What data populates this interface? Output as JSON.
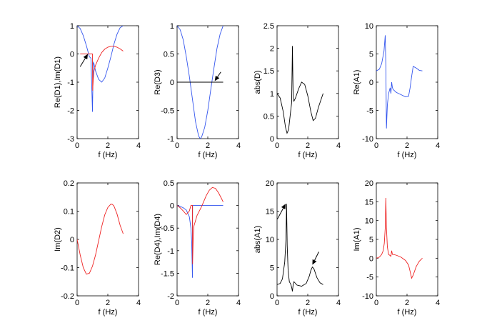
{
  "chart_data": [
    {
      "type": "line",
      "xlabel": "f (Hz)",
      "ylabel": "Re(D1),Im(D1)",
      "xlim": [
        0,
        4
      ],
      "ylim": [
        -3,
        1
      ],
      "xticks": [
        0,
        2,
        4
      ],
      "yticks": [
        -3,
        -2,
        -1,
        0,
        1
      ],
      "series": [
        {
          "name": "Re(D1)",
          "color": "#3355ee",
          "x": [
            0.0,
            0.2,
            0.4,
            0.6,
            0.8,
            0.9,
            1.0,
            1.05,
            1.1,
            1.2,
            1.4,
            1.6,
            1.8,
            2.0,
            2.2,
            2.4,
            2.6,
            2.8,
            3.0
          ],
          "y": [
            1.0,
            0.9,
            0.65,
            0.3,
            -0.1,
            -0.15,
            -2.05,
            -0.3,
            -0.35,
            -0.6,
            -0.9,
            -1.0,
            -0.85,
            -0.5,
            -0.1,
            0.35,
            0.7,
            0.93,
            1.0
          ]
        },
        {
          "name": "Im(D1)",
          "color": "#ee2222",
          "x": [
            0.2,
            0.5,
            0.7,
            0.9,
            1.0,
            1.01,
            1.05,
            1.1,
            1.2,
            1.4,
            1.6,
            1.8,
            2.0,
            2.2,
            2.4,
            2.6,
            2.8,
            3.0
          ],
          "y": [
            0.0,
            0.0,
            0.0,
            0.0,
            0.0,
            -1.3,
            -0.9,
            -0.6,
            -0.4,
            -0.15,
            0.05,
            0.17,
            0.24,
            0.27,
            0.27,
            0.24,
            0.18,
            0.1
          ]
        }
      ],
      "annotations": [
        {
          "type": "arrow",
          "tip": [
            0.7,
            0.0
          ],
          "tail": [
            0.2,
            -0.45
          ]
        }
      ]
    },
    {
      "type": "line",
      "xlabel": "f (Hz)",
      "ylabel": "Re(D3)",
      "xlim": [
        0,
        4
      ],
      "ylim": [
        -1,
        1
      ],
      "xticks": [
        0,
        2,
        4
      ],
      "yticks": [
        -1,
        -0.5,
        0,
        0.5,
        1
      ],
      "series": [
        {
          "name": "Re(D3)",
          "color": "#3355ee",
          "x": [
            0.0,
            0.2,
            0.4,
            0.6,
            0.8,
            1.0,
            1.2,
            1.4,
            1.5,
            1.6,
            1.8,
            2.0,
            2.2,
            2.4,
            2.6,
            2.8,
            3.0
          ],
          "y": [
            1.0,
            0.93,
            0.75,
            0.45,
            0.1,
            -0.3,
            -0.7,
            -0.95,
            -1.0,
            -0.97,
            -0.8,
            -0.5,
            -0.12,
            0.25,
            0.6,
            0.85,
            1.0
          ]
        },
        {
          "name": "zero",
          "color": "#000000",
          "x": [
            0,
            3
          ],
          "y": [
            0,
            0
          ]
        }
      ],
      "annotations": [
        {
          "type": "arrow",
          "tip": [
            2.45,
            0.02
          ],
          "tail": [
            2.85,
            0.18
          ]
        }
      ]
    },
    {
      "type": "line",
      "xlabel": "f (Hz)",
      "ylabel": "abs(D)",
      "xlim": [
        0,
        4
      ],
      "ylim": [
        0,
        2.5
      ],
      "xticks": [
        0,
        2,
        4
      ],
      "yticks": [
        0,
        0.5,
        1,
        1.5,
        2,
        2.5
      ],
      "series": [
        {
          "name": "abs(D)",
          "color": "#000000",
          "x": [
            0.0,
            0.2,
            0.4,
            0.55,
            0.65,
            0.75,
            0.85,
            0.95,
            1.0,
            1.05,
            1.1,
            1.2,
            1.4,
            1.6,
            1.8,
            2.0,
            2.2,
            2.35,
            2.5,
            2.7,
            2.9,
            3.0
          ],
          "y": [
            1.0,
            0.9,
            0.6,
            0.25,
            0.12,
            0.2,
            0.5,
            0.8,
            2.05,
            0.9,
            0.83,
            0.9,
            1.1,
            1.25,
            1.2,
            0.95,
            0.6,
            0.4,
            0.45,
            0.7,
            0.9,
            1.0
          ]
        }
      ]
    },
    {
      "type": "line",
      "xlabel": "f (Hz)",
      "ylabel": "Re(A1)",
      "xlim": [
        0,
        4
      ],
      "ylim": [
        -10,
        10
      ],
      "xticks": [
        0,
        2,
        4
      ],
      "yticks": [
        -10,
        -5,
        0,
        5,
        10
      ],
      "series": [
        {
          "name": "Re(A1)",
          "color": "#3355ee",
          "x": [
            0.0,
            0.2,
            0.35,
            0.5,
            0.58,
            0.62,
            0.66,
            0.72,
            0.8,
            0.9,
            0.95,
            1.0,
            1.05,
            1.1,
            1.3,
            1.6,
            1.9,
            2.1,
            2.2,
            2.3,
            2.4,
            2.6,
            2.8,
            3.0
          ],
          "y": [
            2.0,
            2.3,
            3.3,
            5.5,
            8.3,
            3.0,
            -8.2,
            -4.0,
            -2.0,
            -1.0,
            -2.0,
            0.0,
            -1.0,
            -1.3,
            -1.8,
            -2.2,
            -2.6,
            -2.5,
            -1.0,
            1.0,
            2.8,
            2.5,
            2.1,
            2.0
          ]
        }
      ]
    },
    {
      "type": "line",
      "xlabel": "f (Hz)",
      "ylabel": "Im(D2)",
      "xlim": [
        0,
        4
      ],
      "ylim": [
        -0.2,
        0.2
      ],
      "xticks": [
        0,
        2,
        4
      ],
      "yticks": [
        -0.2,
        -0.1,
        0,
        0.1,
        0.2
      ],
      "series": [
        {
          "name": "Im(D2)",
          "color": "#ee2222",
          "x": [
            0.0,
            0.2,
            0.4,
            0.6,
            0.8,
            1.0,
            1.2,
            1.4,
            1.6,
            1.8,
            2.0,
            2.2,
            2.3,
            2.4,
            2.6,
            2.8,
            3.0
          ],
          "y": [
            0.0,
            -0.055,
            -0.1,
            -0.123,
            -0.12,
            -0.095,
            -0.055,
            -0.005,
            0.045,
            0.087,
            0.113,
            0.125,
            0.124,
            0.118,
            0.09,
            0.05,
            0.02
          ]
        }
      ]
    },
    {
      "type": "line",
      "xlabel": "f (Hz)",
      "ylabel": "Re(D4),Im(D4)",
      "xlim": [
        0,
        4
      ],
      "ylim": [
        -2,
        0.5
      ],
      "xticks": [
        0,
        2,
        4
      ],
      "yticks": [
        -2,
        -1.5,
        -1,
        -0.5,
        0,
        0.5
      ],
      "series": [
        {
          "name": "Re(D4)",
          "color": "#3355ee",
          "x": [
            0.0,
            0.2,
            0.4,
            0.6,
            0.8,
            0.9,
            0.95,
            1.0,
            1.01,
            1.05,
            1.1,
            1.5,
            2.0,
            2.5,
            3.0
          ],
          "y": [
            0.0,
            -0.02,
            -0.05,
            -0.1,
            -0.25,
            -0.5,
            -0.8,
            -1.6,
            0.0,
            0.0,
            0.0,
            0.0,
            0.0,
            0.0,
            0.0
          ]
        },
        {
          "name": "Im(D4)",
          "color": "#ee2222",
          "x": [
            0.0,
            0.2,
            0.4,
            0.6,
            0.8,
            0.9,
            0.95,
            1.0,
            1.01,
            1.05,
            1.1,
            1.3,
            1.6,
            1.9,
            2.1,
            2.3,
            2.5,
            2.7,
            2.9,
            3.0
          ],
          "y": [
            0.0,
            -0.05,
            -0.12,
            -0.2,
            -0.12,
            0.0,
            0.0,
            0.0,
            -1.3,
            -0.7,
            -0.45,
            -0.22,
            -0.02,
            0.22,
            0.34,
            0.4,
            0.38,
            0.28,
            0.15,
            0.08
          ]
        }
      ]
    },
    {
      "type": "line",
      "xlabel": "f (Hz)",
      "ylabel": "abs(A1)",
      "xlim": [
        0,
        4
      ],
      "ylim": [
        0,
        20
      ],
      "xticks": [
        0,
        2,
        4
      ],
      "yticks": [
        0,
        5,
        10,
        15,
        20
      ],
      "series": [
        {
          "name": "abs(A1)",
          "color": "#000000",
          "x": [
            0.0,
            0.2,
            0.35,
            0.5,
            0.58,
            0.62,
            0.66,
            0.72,
            0.8,
            0.9,
            0.95,
            1.0,
            1.05,
            1.1,
            1.3,
            1.6,
            1.9,
            2.1,
            2.2,
            2.3,
            2.4,
            2.6,
            2.8,
            3.0
          ],
          "y": [
            2.0,
            2.2,
            3.0,
            6.0,
            10.0,
            16.3,
            9.0,
            4.5,
            2.5,
            2.0,
            1.5,
            0.8,
            2.0,
            2.5,
            1.9,
            1.7,
            2.2,
            3.5,
            4.5,
            5.1,
            4.8,
            3.2,
            2.3,
            2.0
          ]
        }
      ],
      "annotations": [
        {
          "type": "arrow",
          "tip": [
            0.56,
            16.3
          ],
          "tail": [
            0.02,
            13.6
          ]
        },
        {
          "type": "arrow",
          "tip": [
            2.3,
            5.5
          ],
          "tail": [
            2.72,
            7.8
          ]
        }
      ]
    },
    {
      "type": "line",
      "xlabel": "f (Hz)",
      "ylabel": "Im(A1)",
      "xlim": [
        0,
        4
      ],
      "ylim": [
        -10,
        20
      ],
      "xticks": [
        0,
        2,
        4
      ],
      "yticks": [
        -10,
        -5,
        0,
        5,
        10,
        15,
        20
      ],
      "series": [
        {
          "name": "Im(A1)",
          "color": "#ee2222",
          "x": [
            0.0,
            0.2,
            0.35,
            0.45,
            0.52,
            0.58,
            0.62,
            0.66,
            0.72,
            0.8,
            0.9,
            0.95,
            1.0,
            1.05,
            1.1,
            1.3,
            1.6,
            1.9,
            2.1,
            2.2,
            2.3,
            2.4,
            2.6,
            2.8,
            3.0
          ],
          "y": [
            0.0,
            0.3,
            1.0,
            2.0,
            4.0,
            8.0,
            16.0,
            8.0,
            3.0,
            1.0,
            0.7,
            0.5,
            2.0,
            1.0,
            1.0,
            0.8,
            0.3,
            -0.6,
            -1.8,
            -3.5,
            -5.3,
            -4.5,
            -2.2,
            -0.8,
            0.0
          ]
        }
      ]
    }
  ]
}
